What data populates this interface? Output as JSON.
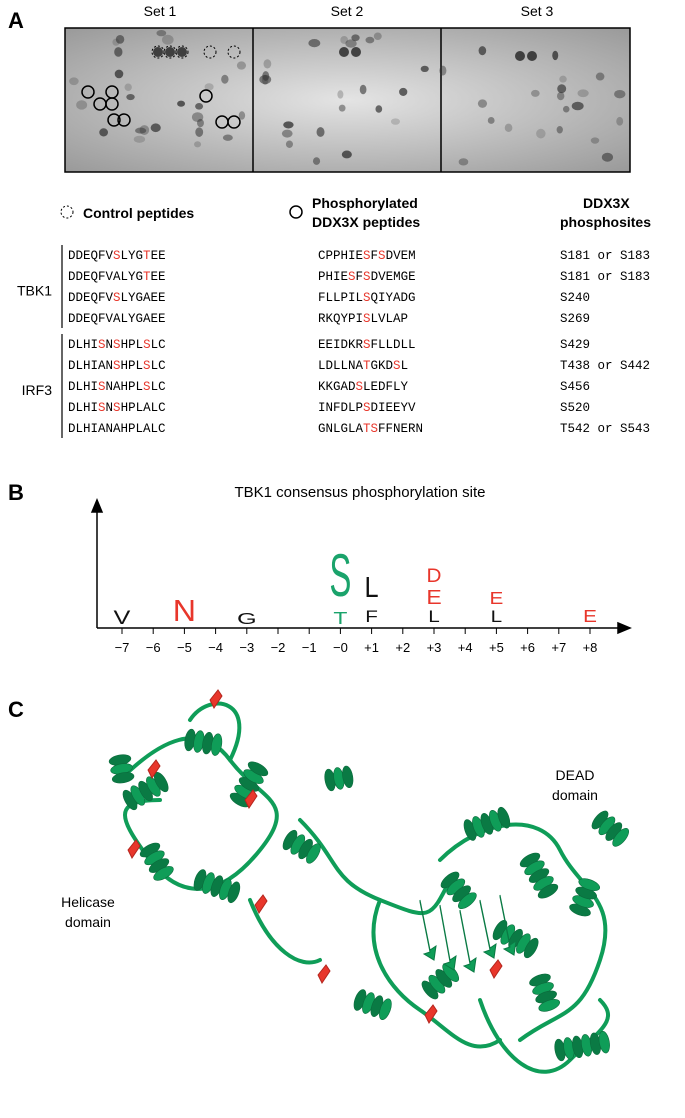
{
  "panel_a": {
    "label": "A",
    "sets": [
      "Set 1",
      "Set 2",
      "Set 3"
    ],
    "legend": {
      "control": "Control peptides",
      "phospho": [
        "Phosphorylated",
        "DDX3X peptides"
      ],
      "sites_header": [
        "DDX3X",
        "phosphosites"
      ]
    },
    "highlight_color": "#e8362b",
    "groups": [
      {
        "name": "TBK1",
        "rows": [
          {
            "consensus": [
              "DDEQFV",
              "S",
              "LYG",
              "T",
              "EE"
            ],
            "peptide": [
              "CPPHIE",
              "S",
              "F",
              "S",
              "DVEM"
            ],
            "site": "S181 or S183"
          },
          {
            "consensus": [
              "DDEQFVALYG",
              "T",
              "EE"
            ],
            "peptide": [
              "PHIE",
              "S",
              "F",
              "S",
              "DVEMGE"
            ],
            "site": "S181 or S183"
          },
          {
            "consensus": [
              "DDEQFV",
              "S",
              "LYGAEE"
            ],
            "peptide": [
              "FLLPIL",
              "S",
              "QIYADG"
            ],
            "site": "S240"
          },
          {
            "consensus": [
              "DDEQFVALYGAEE"
            ],
            "peptide": [
              "RKQYPI",
              "S",
              "LVLAP"
            ],
            "site": "S269"
          }
        ]
      },
      {
        "name": "IRF3",
        "rows": [
          {
            "consensus": [
              "DLHI",
              "S",
              "N",
              "S",
              "HPL",
              "S",
              "LC"
            ],
            "peptide": [
              "EEIDKR",
              "S",
              "FLLDLL"
            ],
            "site": "S429"
          },
          {
            "consensus": [
              "DLHIAN",
              "S",
              "HPL",
              "S",
              "LC"
            ],
            "peptide": [
              "LDLLNA",
              "T",
              "GKD",
              "S",
              "L"
            ],
            "site": "T438 or S442"
          },
          {
            "consensus": [
              "DLHI",
              "S",
              "NAHPL",
              "S",
              "LC"
            ],
            "peptide": [
              "KKGAD",
              "S",
              "LEDFLY"
            ],
            "site": "S456"
          },
          {
            "consensus": [
              "DLHI",
              "S",
              "N",
              "S",
              "HPLALC"
            ],
            "peptide": [
              "INFDLP",
              "S",
              "DIEEYV"
            ],
            "site": "S520"
          },
          {
            "consensus": [
              "DLHIANAHPLALC"
            ],
            "peptide": [
              "GNLGLA",
              "TS",
              "FFNERN"
            ],
            "site": "T542 or S543"
          }
        ]
      }
    ]
  },
  "panel_b": {
    "label": "B",
    "title": "TBK1 consensus phosphorylation site",
    "positions": [
      "−7",
      "−6",
      "−5",
      "−4",
      "−3",
      "−2",
      "−1",
      "−0",
      "+1",
      "+2",
      "+3",
      "+4",
      "+5",
      "+6",
      "+7",
      "+8"
    ],
    "letters": [
      {
        "text": "V",
        "color": "#111111"
      },
      {
        "text": "N",
        "color": "#e8362b"
      },
      {
        "text": "G",
        "color": "#111111"
      },
      {
        "text": "S",
        "color": "#1aa36b"
      },
      {
        "text": "T",
        "color": "#1aa36b"
      },
      {
        "text": "L",
        "color": "#111111"
      },
      {
        "text": "F",
        "color": "#111111"
      },
      {
        "text": "D",
        "color": "#e8362b"
      },
      {
        "text": "E",
        "color": "#e8362b"
      },
      {
        "text": "L",
        "color": "#111111"
      },
      {
        "text": "E",
        "color": "#e8362b"
      },
      {
        "text": "L",
        "color": "#111111"
      },
      {
        "text": "E",
        "color": "#e8362b"
      }
    ]
  },
  "panel_c": {
    "label": "C",
    "dead": [
      "DEAD",
      "domain"
    ],
    "helicase": [
      "Helicase",
      "domain"
    ]
  }
}
